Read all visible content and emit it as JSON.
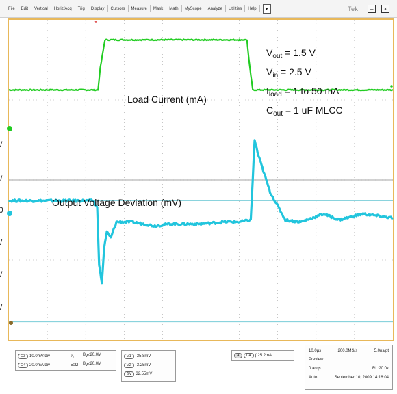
{
  "menu": {
    "items": [
      "File",
      "Edit",
      "Vertical",
      "Horiz/Acq",
      "Trig",
      "Display",
      "Cursors",
      "Measure",
      "Mask",
      "Math",
      "MyScope",
      "Analyze",
      "Utilities",
      "Help"
    ],
    "dropdown_glyph": "▾",
    "brand": "Tek",
    "minimize": "–",
    "close": "×"
  },
  "annotations": {
    "vout_name": "V",
    "vout_sub": "out",
    "vout_value": " = 1.5 V",
    "vin_name": "V",
    "vin_sub": "in",
    "vin_value": " = 2.5 V",
    "iload_name": "I",
    "iload_sub": "load",
    "iload_value": " = 1 to 50 mA",
    "cout_name": "C",
    "cout_sub": "out",
    "cout_value": " = 1 uF MLCC",
    "load_current": "Load Current (mA)",
    "output_deviation": "Output Voltage Deviation (mV)"
  },
  "left_ticks": [
    "/",
    "/",
    "0",
    "/",
    "/",
    "/"
  ],
  "channels": {
    "c3": {
      "tag": "C3",
      "scale": "10.0mV/div",
      "coupling": "¹⁄₂",
      "bw": "B",
      "bw_sub": "W",
      "bw_val": ":20.0M"
    },
    "c4": {
      "tag": "C4",
      "scale": "20.0mA/div",
      "impedance": "50Ω",
      "bw": "B",
      "bw_sub": "W",
      "bw_val": ":20.0M"
    }
  },
  "cursors": {
    "v1_tag": "V1",
    "v1": "-35.8mV",
    "v2_tag": "V2",
    "v2": "-3.25mV",
    "dv_tag": "ΔV",
    "dv": "32.55mV"
  },
  "trigger": {
    "tag_a": "A",
    "tag_ch": "C4",
    "slope": "∫",
    "level": "25.2mA"
  },
  "acquisition": {
    "time_div": "10.0µs",
    "sample_rate": "200.0MS/s",
    "per_pt": "5.0ns/pt",
    "mode": "Preview",
    "acqs": "0 acqs",
    "record_length": "RL:20.0k",
    "trigger_mode": "Auto",
    "date_time": "September 10, 2009  14:16:04"
  },
  "colors": {
    "ch_current": "#22cc22",
    "ch_voltage": "#22c5dd",
    "border": "#e8b85a",
    "grid": "#a0a0a0"
  },
  "chart_data": {
    "type": "line",
    "xlim_div": [
      0,
      10
    ],
    "ylim_div": [
      0,
      8
    ],
    "series": [
      {
        "name": "Load Current (mA)",
        "x_div": [
          0,
          2.32,
          2.38,
          2.5,
          3,
          4,
          5,
          6,
          6.0,
          6.2,
          6.25,
          6.35,
          8,
          10
        ],
        "y_div": [
          6.25,
          6.25,
          6.8,
          7.5,
          7.5,
          7.5,
          7.5,
          7.5,
          7.5,
          7.5,
          7.0,
          6.25,
          6.25,
          6.25
        ]
      },
      {
        "name": "Output Voltage Deviation (mV)",
        "x_div": [
          0,
          2.2,
          2.3,
          2.35,
          2.42,
          2.48,
          2.55,
          2.65,
          2.8,
          3.2,
          3.8,
          4.2,
          5.0,
          5.6,
          6.0,
          6.3,
          6.4,
          6.5,
          6.8,
          7.2,
          7.6,
          8.2,
          8.6,
          9.2,
          10
        ],
        "y_div": [
          3.48,
          3.48,
          3.3,
          1.9,
          1.4,
          2.3,
          2.7,
          2.55,
          2.95,
          2.95,
          2.85,
          2.9,
          2.9,
          2.95,
          2.95,
          3.0,
          5.0,
          4.6,
          3.7,
          3.0,
          2.95,
          3.15,
          3.0,
          3.15,
          3.05
        ]
      }
    ],
    "reference_levels_div": [
      3.48,
      0.45
    ]
  }
}
